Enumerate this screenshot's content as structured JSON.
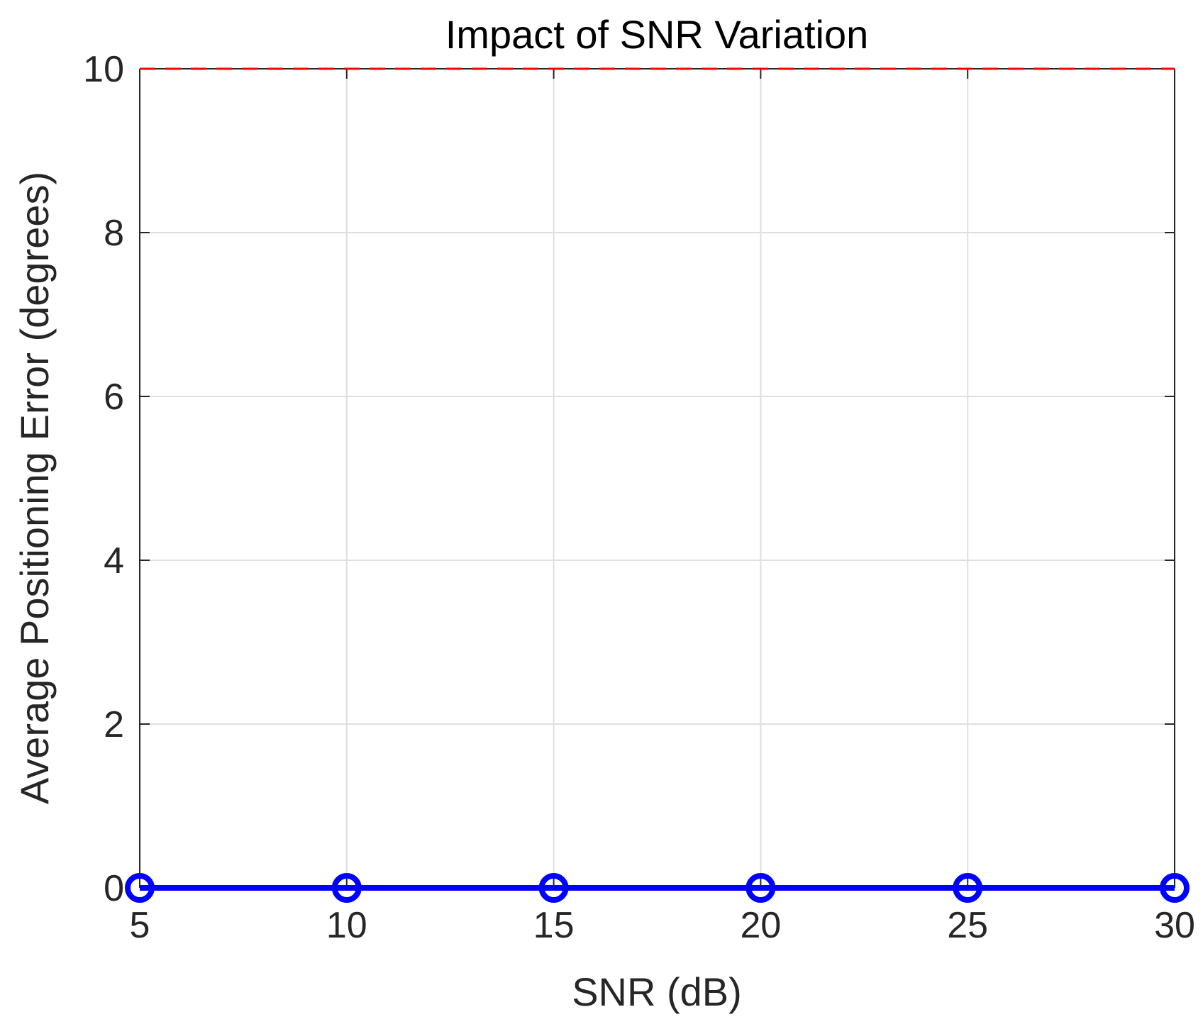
{
  "chart_data": {
    "type": "line",
    "title": "Impact of SNR Variation",
    "xlabel": "SNR (dB)",
    "ylabel": "Average Positioning Error (degrees)",
    "xlim": [
      5,
      30
    ],
    "ylim": [
      0,
      10
    ],
    "x_ticks": [
      5,
      10,
      15,
      20,
      25,
      30
    ],
    "y_ticks": [
      0,
      2,
      4,
      6,
      8,
      10
    ],
    "grid": true,
    "legend": "none",
    "series": [
      {
        "x": [
          5,
          10,
          15,
          20,
          25,
          30
        ],
        "y": [
          0,
          0,
          0,
          0,
          0,
          0
        ],
        "color": "#0000FF",
        "marker": "circle",
        "line_style": "solid"
      },
      {
        "x": [
          5,
          30
        ],
        "y": [
          10,
          10
        ],
        "color": "#FF0000",
        "line_style": "dashed"
      }
    ]
  }
}
